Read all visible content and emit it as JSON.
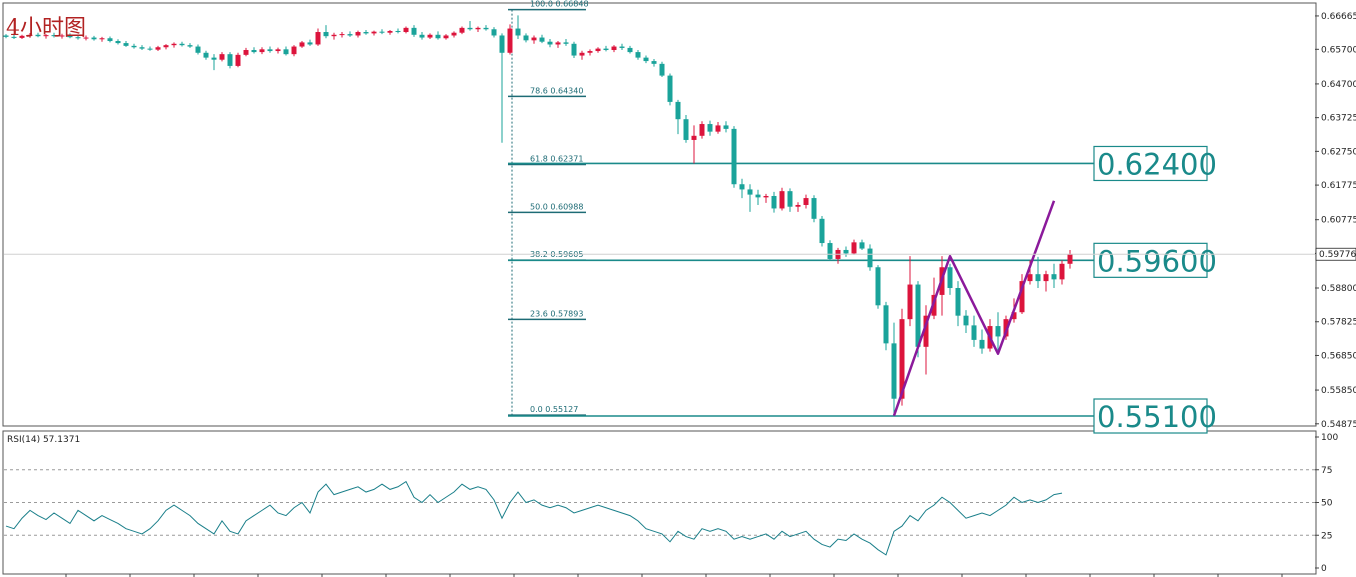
{
  "title": "4小时图",
  "chart_data": {
    "type": "candlestick",
    "title": "4小时图",
    "price_axis": {
      "ylim": [
        0.5484,
        0.6701
      ],
      "ticks": [
        0.66665,
        0.657,
        0.647,
        0.63725,
        0.6275,
        0.61775,
        0.60775,
        0.598,
        0.588,
        0.57825,
        0.5685,
        0.5585,
        0.54875
      ]
    },
    "current_price": 0.59776,
    "colors": {
      "bull": "#dc143c",
      "bear": "#1aa39a",
      "fib": "#1d6b75",
      "pattern": "#8b1a9b",
      "level": "#1a8a8a",
      "title": "#b22222"
    },
    "fibonacci": [
      {
        "ratio": "100.0",
        "price": 0.66848
      },
      {
        "ratio": "78.6",
        "price": 0.6434
      },
      {
        "ratio": "61.8",
        "price": 0.62371
      },
      {
        "ratio": "50.0",
        "price": 0.60988
      },
      {
        "ratio": "38.2",
        "price": 0.59605
      },
      {
        "ratio": "23.6",
        "price": 0.57893
      },
      {
        "ratio": "0.0",
        "price": 0.55127
      }
    ],
    "levels": [
      {
        "price": 0.624,
        "label": "0.62400"
      },
      {
        "price": 0.596,
        "label": "0.59600"
      },
      {
        "price": 0.551,
        "label": "0.55100"
      }
    ],
    "pattern_points": [
      {
        "bar": 111,
        "price": 0.5511
      },
      {
        "bar": 118,
        "price": 0.5972
      },
      {
        "bar": 124,
        "price": 0.569
      },
      {
        "bar": 131,
        "price": 0.6132
      }
    ],
    "candles": [
      [
        0.661,
        0.6614,
        0.6602,
        0.6606
      ],
      [
        0.6606,
        0.6612,
        0.66,
        0.6603
      ],
      [
        0.6603,
        0.6612,
        0.66,
        0.6609
      ],
      [
        0.6609,
        0.6617,
        0.6603,
        0.6612
      ],
      [
        0.6612,
        0.6618,
        0.6605,
        0.6608
      ],
      [
        0.6608,
        0.6614,
        0.6601,
        0.6611
      ],
      [
        0.6611,
        0.6618,
        0.6604,
        0.6608
      ],
      [
        0.6608,
        0.6615,
        0.6601,
        0.661
      ],
      [
        0.661,
        0.6616,
        0.6602,
        0.6605
      ],
      [
        0.6605,
        0.6611,
        0.6598,
        0.6602
      ],
      [
        0.6602,
        0.661,
        0.6596,
        0.6604
      ],
      [
        0.6604,
        0.6609,
        0.6595,
        0.6599
      ],
      [
        0.6599,
        0.6606,
        0.6592,
        0.6602
      ],
      [
        0.6602,
        0.6607,
        0.659,
        0.6594
      ],
      [
        0.6594,
        0.6599,
        0.6584,
        0.6588
      ],
      [
        0.6588,
        0.6594,
        0.6577,
        0.658
      ],
      [
        0.658,
        0.6586,
        0.6572,
        0.6576
      ],
      [
        0.6576,
        0.6582,
        0.6568,
        0.6572
      ],
      [
        0.6572,
        0.6578,
        0.6566,
        0.6569
      ],
      [
        0.6569,
        0.658,
        0.6565,
        0.6576
      ],
      [
        0.6576,
        0.6585,
        0.657,
        0.6582
      ],
      [
        0.6582,
        0.659,
        0.6575,
        0.6586
      ],
      [
        0.6586,
        0.6592,
        0.6578,
        0.6582
      ],
      [
        0.6582,
        0.6588,
        0.6574,
        0.6578
      ],
      [
        0.6578,
        0.6584,
        0.6555,
        0.656
      ],
      [
        0.656,
        0.6566,
        0.654,
        0.6546
      ],
      [
        0.6546,
        0.6556,
        0.651,
        0.654
      ],
      [
        0.654,
        0.6562,
        0.6535,
        0.6556
      ],
      [
        0.6556,
        0.6562,
        0.6515,
        0.6522
      ],
      [
        0.6522,
        0.656,
        0.6518,
        0.6554
      ],
      [
        0.6554,
        0.6574,
        0.655,
        0.6568
      ],
      [
        0.6568,
        0.6576,
        0.6558,
        0.6562
      ],
      [
        0.6562,
        0.6576,
        0.6556,
        0.657
      ],
      [
        0.657,
        0.6578,
        0.656,
        0.6565
      ],
      [
        0.6565,
        0.6575,
        0.6558,
        0.657
      ],
      [
        0.657,
        0.6578,
        0.6552,
        0.6556
      ],
      [
        0.6556,
        0.6582,
        0.655,
        0.6578
      ],
      [
        0.6578,
        0.6594,
        0.6574,
        0.659
      ],
      [
        0.659,
        0.6598,
        0.658,
        0.6584
      ],
      [
        0.6584,
        0.663,
        0.658,
        0.662
      ],
      [
        0.662,
        0.664,
        0.6602,
        0.6608
      ],
      [
        0.6608,
        0.6618,
        0.6598,
        0.6612
      ],
      [
        0.6612,
        0.662,
        0.6604,
        0.6614
      ],
      [
        0.6614,
        0.6622,
        0.6606,
        0.661
      ],
      [
        0.661,
        0.6624,
        0.6604,
        0.662
      ],
      [
        0.662,
        0.6626,
        0.6612,
        0.6616
      ],
      [
        0.6616,
        0.6624,
        0.661,
        0.6621
      ],
      [
        0.6621,
        0.6628,
        0.6614,
        0.6618
      ],
      [
        0.6618,
        0.6626,
        0.6612,
        0.6623
      ],
      [
        0.6623,
        0.663,
        0.6616,
        0.662
      ],
      [
        0.662,
        0.6636,
        0.6616,
        0.6632
      ],
      [
        0.6632,
        0.664,
        0.6606,
        0.6612
      ],
      [
        0.6612,
        0.662,
        0.6598,
        0.6604
      ],
      [
        0.6604,
        0.6616,
        0.66,
        0.6612
      ],
      [
        0.6612,
        0.6622,
        0.6598,
        0.6602
      ],
      [
        0.6602,
        0.6614,
        0.6598,
        0.661
      ],
      [
        0.661,
        0.6622,
        0.6604,
        0.6618
      ],
      [
        0.6618,
        0.6636,
        0.6614,
        0.6632
      ],
      [
        0.6632,
        0.6652,
        0.6624,
        0.6628
      ],
      [
        0.6628,
        0.6636,
        0.662,
        0.6632
      ],
      [
        0.6632,
        0.664,
        0.6624,
        0.6628
      ],
      [
        0.6628,
        0.6634,
        0.6604,
        0.661
      ],
      [
        0.661,
        0.6616,
        0.63,
        0.656
      ],
      [
        0.656,
        0.6642,
        0.6555,
        0.663
      ],
      [
        0.663,
        0.6668,
        0.66,
        0.661
      ],
      [
        0.661,
        0.6616,
        0.659,
        0.6596
      ],
      [
        0.6596,
        0.661,
        0.6586,
        0.6604
      ],
      [
        0.6604,
        0.6612,
        0.6588,
        0.6592
      ],
      [
        0.6592,
        0.66,
        0.6576,
        0.6584
      ],
      [
        0.6584,
        0.6594,
        0.6574,
        0.659
      ],
      [
        0.659,
        0.66,
        0.658,
        0.6586
      ],
      [
        0.6586,
        0.6592,
        0.6545,
        0.6552
      ],
      [
        0.6552,
        0.6566,
        0.654,
        0.656
      ],
      [
        0.656,
        0.657,
        0.6552,
        0.6565
      ],
      [
        0.6565,
        0.6576,
        0.656,
        0.6572
      ],
      [
        0.6572,
        0.658,
        0.6564,
        0.6568
      ],
      [
        0.6568,
        0.6582,
        0.6562,
        0.6578
      ],
      [
        0.6578,
        0.6586,
        0.6568,
        0.6574
      ],
      [
        0.6574,
        0.658,
        0.6558,
        0.6562
      ],
      [
        0.6562,
        0.6568,
        0.654,
        0.6546
      ],
      [
        0.6546,
        0.6552,
        0.653,
        0.6536
      ],
      [
        0.6536,
        0.6542,
        0.652,
        0.6528
      ],
      [
        0.6528,
        0.6534,
        0.649,
        0.6494
      ],
      [
        0.6494,
        0.65,
        0.6408,
        0.6418
      ],
      [
        0.6418,
        0.6424,
        0.6325,
        0.6368
      ],
      [
        0.6368,
        0.638,
        0.63,
        0.6308
      ],
      [
        0.6308,
        0.635,
        0.624,
        0.632
      ],
      [
        0.632,
        0.6362,
        0.6312,
        0.6354
      ],
      [
        0.6354,
        0.6364,
        0.632,
        0.6332
      ],
      [
        0.6332,
        0.636,
        0.6326,
        0.635
      ],
      [
        0.635,
        0.6362,
        0.633,
        0.634
      ],
      [
        0.634,
        0.6348,
        0.617,
        0.618
      ],
      [
        0.618,
        0.6196,
        0.614,
        0.6165
      ],
      [
        0.6165,
        0.618,
        0.61,
        0.615
      ],
      [
        0.615,
        0.6164,
        0.612,
        0.6142
      ],
      [
        0.6142,
        0.6152,
        0.6126,
        0.6146
      ],
      [
        0.6146,
        0.6158,
        0.6098,
        0.611
      ],
      [
        0.611,
        0.617,
        0.6104,
        0.616
      ],
      [
        0.616,
        0.6168,
        0.61,
        0.6115
      ],
      [
        0.6115,
        0.6128,
        0.61,
        0.612
      ],
      [
        0.612,
        0.615,
        0.611,
        0.614
      ],
      [
        0.614,
        0.6148,
        0.607,
        0.608
      ],
      [
        0.608,
        0.6088,
        0.6,
        0.601
      ],
      [
        0.601,
        0.6018,
        0.596,
        0.5964
      ],
      [
        0.5964,
        0.5996,
        0.595,
        0.599
      ],
      [
        0.599,
        0.6,
        0.597,
        0.598
      ],
      [
        0.598,
        0.602,
        0.5976,
        0.6012
      ],
      [
        0.6012,
        0.602,
        0.599,
        0.5994
      ],
      [
        0.5994,
        0.6006,
        0.593,
        0.594
      ],
      [
        0.594,
        0.5946,
        0.582,
        0.583
      ],
      [
        0.583,
        0.584,
        0.57,
        0.572
      ],
      [
        0.572,
        0.578,
        0.5511,
        0.556
      ],
      [
        0.556,
        0.582,
        0.554,
        0.579
      ],
      [
        0.579,
        0.5972,
        0.577,
        0.589
      ],
      [
        0.589,
        0.59,
        0.568,
        0.571
      ],
      [
        0.571,
        0.583,
        0.563,
        0.58
      ],
      [
        0.58,
        0.591,
        0.579,
        0.586
      ],
      [
        0.586,
        0.5972,
        0.58,
        0.594
      ],
      [
        0.594,
        0.595,
        0.586,
        0.588
      ],
      [
        0.588,
        0.59,
        0.577,
        0.58
      ],
      [
        0.58,
        0.5816,
        0.575,
        0.5772
      ],
      [
        0.5772,
        0.58,
        0.571,
        0.573
      ],
      [
        0.573,
        0.576,
        0.569,
        0.5705
      ],
      [
        0.5705,
        0.579,
        0.5696,
        0.577
      ],
      [
        0.577,
        0.581,
        0.57,
        0.574
      ],
      [
        0.574,
        0.58,
        0.573,
        0.579
      ],
      [
        0.579,
        0.585,
        0.578,
        0.581
      ],
      [
        0.581,
        0.592,
        0.5805,
        0.59
      ],
      [
        0.59,
        0.596,
        0.589,
        0.592
      ],
      [
        0.592,
        0.597,
        0.588,
        0.59
      ],
      [
        0.59,
        0.593,
        0.587,
        0.592
      ],
      [
        0.592,
        0.595,
        0.588,
        0.5905
      ],
      [
        0.5905,
        0.596,
        0.589,
        0.595
      ],
      [
        0.595,
        0.599,
        0.5936,
        0.5978
      ]
    ],
    "rsi": {
      "title": "RSI(14) 57.1371",
      "ylim": [
        0,
        100
      ],
      "ticks": [
        100,
        75,
        50,
        25,
        0
      ],
      "levels": [
        75,
        50,
        25
      ],
      "values": [
        32,
        30,
        38,
        44,
        40,
        37,
        42,
        38,
        34,
        44,
        40,
        36,
        40,
        37,
        34,
        30,
        28,
        26,
        30,
        36,
        44,
        48,
        44,
        40,
        34,
        30,
        26,
        36,
        28,
        26,
        36,
        40,
        44,
        48,
        42,
        40,
        46,
        50,
        42,
        58,
        64,
        56,
        58,
        60,
        62,
        58,
        60,
        64,
        60,
        62,
        66,
        54,
        50,
        56,
        50,
        54,
        58,
        64,
        60,
        62,
        60,
        52,
        38,
        50,
        58,
        50,
        52,
        48,
        46,
        48,
        46,
        42,
        44,
        46,
        48,
        46,
        44,
        42,
        40,
        36,
        30,
        28,
        26,
        20,
        28,
        24,
        22,
        30,
        28,
        30,
        28,
        22,
        24,
        22,
        24,
        26,
        22,
        28,
        24,
        26,
        28,
        22,
        18,
        16,
        22,
        21,
        26,
        22,
        19,
        14,
        10,
        28,
        32,
        40,
        36,
        44,
        48,
        54,
        50,
        44,
        38,
        40,
        42,
        40,
        44,
        48,
        54,
        50,
        52,
        50,
        52,
        56,
        57.14
      ]
    }
  }
}
